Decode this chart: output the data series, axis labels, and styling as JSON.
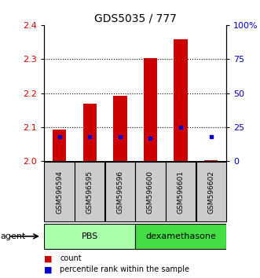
{
  "title": "GDS5035 / 777",
  "samples": [
    "GSM596594",
    "GSM596595",
    "GSM596596",
    "GSM596600",
    "GSM596601",
    "GSM596602"
  ],
  "groups": [
    "PBS",
    "PBS",
    "PBS",
    "dexamethasone",
    "dexamethasone",
    "dexamethasone"
  ],
  "count_values": [
    2.092,
    2.17,
    2.192,
    2.302,
    2.358,
    2.003
  ],
  "count_base": 2.0,
  "percentile_values": [
    18,
    18,
    18,
    17,
    25,
    18
  ],
  "ylim_left": [
    2.0,
    2.4
  ],
  "ylim_right": [
    0,
    100
  ],
  "yticks_left": [
    2.0,
    2.1,
    2.2,
    2.3,
    2.4
  ],
  "grid_ticks": [
    2.1,
    2.2,
    2.3
  ],
  "bar_color": "#CC0000",
  "dot_color": "#0000CC",
  "axis_color_left": "#CC0000",
  "axis_color_right": "#0000BB",
  "bg_color": "#FFFFFF",
  "sample_box_color": "#CCCCCC",
  "pbs_color": "#AAFFAA",
  "dex_color": "#44DD44",
  "legend_count_label": "count",
  "legend_pct_label": "percentile rank within the sample"
}
